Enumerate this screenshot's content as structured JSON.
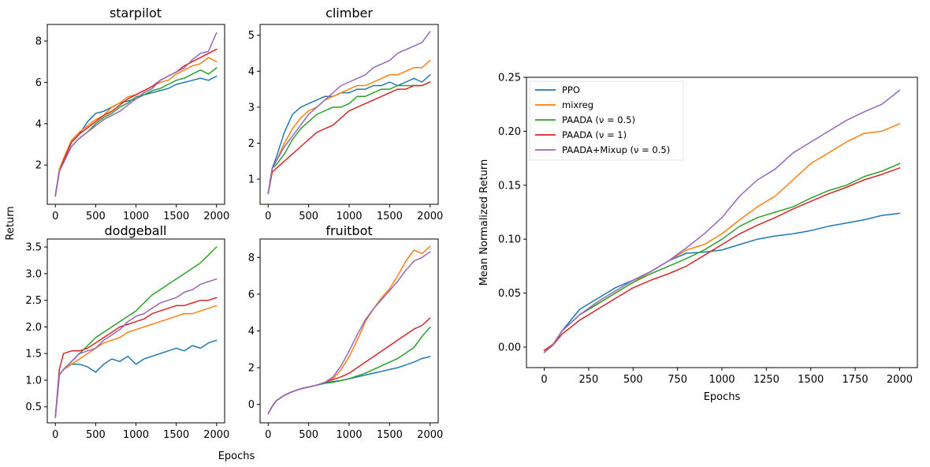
{
  "figure": {
    "shared_xlabel": "Epochs",
    "shared_ylabel": "Return"
  },
  "series_meta": [
    {
      "key": "ppo",
      "name": "PPO",
      "color": "#1f77b4"
    },
    {
      "key": "mixreg",
      "name": "mixreg",
      "color": "#ff7f0e"
    },
    {
      "key": "paada05",
      "name": "PAADA (ν = 0.5)",
      "color": "#2ca02c"
    },
    {
      "key": "paada1",
      "name": "PAADA (ν = 1)",
      "color": "#d62728"
    },
    {
      "key": "paadamix",
      "name": "PAADA+Mixup (ν = 0.5)",
      "color": "#9467bd"
    }
  ],
  "chart_data": [
    {
      "type": "line",
      "title": "starpilot",
      "xlabel": "",
      "ylabel": "",
      "xlim": [
        -100,
        2100
      ],
      "ylim": [
        0.1,
        8.8
      ],
      "xticks": [
        0,
        500,
        1000,
        1500,
        2000
      ],
      "yticks": [
        2,
        4,
        6,
        8
      ],
      "x": [
        0,
        50,
        100,
        200,
        300,
        400,
        500,
        600,
        700,
        800,
        900,
        1000,
        1100,
        1200,
        1300,
        1400,
        1500,
        1600,
        1700,
        1800,
        1900,
        2000
      ],
      "series": [
        {
          "name": "PPO",
          "values": [
            0.5,
            1.7,
            2.2,
            3.1,
            3.5,
            4.1,
            4.5,
            4.6,
            4.8,
            5.0,
            5.1,
            5.2,
            5.4,
            5.5,
            5.6,
            5.7,
            5.9,
            6.0,
            6.1,
            6.2,
            6.1,
            6.3
          ]
        },
        {
          "name": "mixreg",
          "values": [
            0.5,
            1.8,
            2.3,
            3.2,
            3.6,
            3.9,
            4.2,
            4.4,
            4.8,
            5.0,
            5.3,
            5.4,
            5.6,
            5.8,
            6.0,
            6.1,
            6.4,
            6.6,
            6.8,
            6.9,
            7.2,
            7.0
          ]
        },
        {
          "name": "PAADA (ν = 0.5)",
          "values": [
            0.5,
            1.7,
            2.1,
            2.9,
            3.3,
            3.6,
            4.0,
            4.3,
            4.5,
            4.8,
            5.0,
            5.3,
            5.4,
            5.6,
            5.7,
            5.9,
            6.1,
            6.2,
            6.4,
            6.6,
            6.4,
            6.7
          ]
        },
        {
          "name": "PAADA (ν = 1)",
          "values": [
            0.5,
            1.7,
            2.2,
            3.1,
            3.5,
            3.8,
            4.1,
            4.4,
            4.6,
            4.9,
            5.2,
            5.4,
            5.6,
            5.8,
            6.1,
            6.3,
            6.5,
            6.8,
            7.0,
            7.2,
            7.4,
            7.6
          ]
        },
        {
          "name": "PAADA+Mixup (ν = 0.5)",
          "values": [
            0.5,
            1.7,
            2.1,
            2.9,
            3.3,
            3.6,
            3.9,
            4.2,
            4.4,
            4.6,
            4.9,
            5.2,
            5.5,
            5.7,
            6.1,
            6.3,
            6.5,
            6.7,
            7.1,
            7.4,
            7.5,
            8.4
          ]
        }
      ]
    },
    {
      "type": "line",
      "title": "climber",
      "xlabel": "",
      "ylabel": "",
      "xlim": [
        -100,
        2100
      ],
      "ylim": [
        0.3,
        5.3
      ],
      "xticks": [
        0,
        500,
        1000,
        1500,
        2000
      ],
      "yticks": [
        1,
        2,
        3,
        4,
        5
      ],
      "x": [
        0,
        50,
        100,
        200,
        300,
        400,
        500,
        600,
        700,
        800,
        900,
        1000,
        1100,
        1200,
        1300,
        1400,
        1500,
        1600,
        1700,
        1800,
        1900,
        2000
      ],
      "series": [
        {
          "name": "PPO",
          "values": [
            0.6,
            1.3,
            1.6,
            2.3,
            2.8,
            3.0,
            3.1,
            3.2,
            3.3,
            3.3,
            3.4,
            3.4,
            3.5,
            3.5,
            3.6,
            3.6,
            3.7,
            3.6,
            3.7,
            3.8,
            3.7,
            3.9
          ]
        },
        {
          "name": "mixreg",
          "values": [
            0.6,
            1.3,
            1.5,
            2.0,
            2.4,
            2.7,
            2.9,
            3.0,
            3.2,
            3.3,
            3.4,
            3.5,
            3.6,
            3.6,
            3.7,
            3.8,
            3.9,
            3.9,
            4.0,
            4.1,
            4.1,
            4.3
          ]
        },
        {
          "name": "PAADA (ν = 0.5)",
          "values": [
            0.6,
            1.3,
            1.4,
            1.7,
            2.1,
            2.4,
            2.6,
            2.8,
            2.9,
            3.0,
            3.0,
            3.1,
            3.3,
            3.3,
            3.4,
            3.5,
            3.5,
            3.6,
            3.6,
            3.6,
            3.6,
            3.7
          ]
        },
        {
          "name": "PAADA (ν = 1)",
          "values": [
            0.6,
            1.2,
            1.3,
            1.5,
            1.7,
            1.9,
            2.1,
            2.3,
            2.4,
            2.5,
            2.7,
            2.9,
            3.0,
            3.1,
            3.2,
            3.3,
            3.4,
            3.5,
            3.5,
            3.6,
            3.6,
            3.7
          ]
        },
        {
          "name": "PAADA+Mixup (ν = 0.5)",
          "values": [
            0.6,
            1.3,
            1.5,
            1.9,
            2.2,
            2.5,
            2.8,
            3.0,
            3.2,
            3.4,
            3.6,
            3.7,
            3.8,
            3.9,
            4.1,
            4.2,
            4.3,
            4.5,
            4.6,
            4.7,
            4.8,
            5.1
          ]
        }
      ]
    },
    {
      "type": "line",
      "title": "dodgeball",
      "xlabel": "",
      "ylabel": "",
      "xlim": [
        -100,
        2100
      ],
      "ylim": [
        0.2,
        3.65
      ],
      "xticks": [
        0,
        500,
        1000,
        1500,
        2000
      ],
      "yticks": [
        0.5,
        1.0,
        1.5,
        2.0,
        2.5,
        3.0,
        3.5
      ],
      "x": [
        0,
        50,
        100,
        200,
        300,
        400,
        500,
        600,
        700,
        800,
        900,
        1000,
        1100,
        1200,
        1300,
        1400,
        1500,
        1600,
        1700,
        1800,
        1900,
        2000
      ],
      "series": [
        {
          "name": "PPO",
          "values": [
            0.3,
            1.1,
            1.2,
            1.3,
            1.3,
            1.25,
            1.15,
            1.3,
            1.4,
            1.35,
            1.45,
            1.3,
            1.4,
            1.45,
            1.5,
            1.55,
            1.6,
            1.55,
            1.65,
            1.6,
            1.7,
            1.75
          ]
        },
        {
          "name": "mixreg",
          "values": [
            0.3,
            1.1,
            1.2,
            1.3,
            1.4,
            1.5,
            1.6,
            1.7,
            1.75,
            1.8,
            1.9,
            1.95,
            2.0,
            2.05,
            2.1,
            2.15,
            2.2,
            2.25,
            2.25,
            2.3,
            2.35,
            2.4
          ]
        },
        {
          "name": "PAADA (ν = 0.5)",
          "values": [
            0.3,
            1.1,
            1.2,
            1.35,
            1.5,
            1.65,
            1.8,
            1.9,
            2.0,
            2.1,
            2.2,
            2.3,
            2.45,
            2.6,
            2.7,
            2.8,
            2.9,
            3.0,
            3.1,
            3.2,
            3.35,
            3.5
          ]
        },
        {
          "name": "PAADA (ν = 1)",
          "values": [
            0.3,
            1.2,
            1.5,
            1.55,
            1.55,
            1.6,
            1.7,
            1.8,
            1.9,
            2.0,
            2.05,
            2.1,
            2.15,
            2.25,
            2.3,
            2.35,
            2.4,
            2.4,
            2.45,
            2.5,
            2.5,
            2.55
          ]
        },
        {
          "name": "PAADA+Mixup (ν = 0.5)",
          "values": [
            0.3,
            1.1,
            1.2,
            1.35,
            1.5,
            1.55,
            1.6,
            1.75,
            1.85,
            1.95,
            2.1,
            2.2,
            2.25,
            2.35,
            2.45,
            2.5,
            2.55,
            2.65,
            2.7,
            2.8,
            2.85,
            2.9
          ]
        }
      ]
    },
    {
      "type": "line",
      "title": "fruitbot",
      "xlabel": "",
      "ylabel": "",
      "xlim": [
        -100,
        2100
      ],
      "ylim": [
        -1.0,
        9.0
      ],
      "xticks": [
        0,
        500,
        1000,
        1500,
        2000
      ],
      "yticks": [
        0,
        2,
        4,
        6,
        8
      ],
      "x": [
        0,
        50,
        100,
        200,
        300,
        400,
        500,
        600,
        700,
        800,
        900,
        1000,
        1100,
        1200,
        1300,
        1400,
        1500,
        1600,
        1700,
        1800,
        1900,
        2000
      ],
      "series": [
        {
          "name": "PPO",
          "values": [
            -0.5,
            -0.1,
            0.2,
            0.5,
            0.7,
            0.85,
            0.95,
            1.05,
            1.15,
            1.25,
            1.3,
            1.4,
            1.5,
            1.6,
            1.7,
            1.8,
            1.9,
            2.0,
            2.15,
            2.3,
            2.5,
            2.6
          ]
        },
        {
          "name": "mixreg",
          "values": [
            -0.5,
            -0.1,
            0.2,
            0.5,
            0.7,
            0.85,
            0.95,
            1.05,
            1.2,
            1.4,
            1.9,
            2.6,
            3.5,
            4.5,
            5.2,
            5.8,
            6.3,
            7.0,
            7.8,
            8.4,
            8.2,
            8.6
          ]
        },
        {
          "name": "PAADA (ν = 0.5)",
          "values": [
            -0.5,
            -0.1,
            0.2,
            0.5,
            0.7,
            0.85,
            0.95,
            1.05,
            1.15,
            1.2,
            1.3,
            1.4,
            1.55,
            1.7,
            1.9,
            2.1,
            2.3,
            2.5,
            2.8,
            3.1,
            3.7,
            4.2
          ]
        },
        {
          "name": "PAADA (ν = 1)",
          "values": [
            -0.5,
            -0.1,
            0.2,
            0.5,
            0.7,
            0.85,
            0.95,
            1.05,
            1.2,
            1.35,
            1.5,
            1.7,
            2.0,
            2.3,
            2.6,
            2.9,
            3.2,
            3.5,
            3.8,
            4.1,
            4.3,
            4.7
          ]
        },
        {
          "name": "PAADA+Mixup (ν = 0.5)",
          "values": [
            -0.5,
            -0.1,
            0.2,
            0.5,
            0.7,
            0.85,
            0.95,
            1.05,
            1.2,
            1.5,
            2.1,
            2.9,
            3.8,
            4.6,
            5.2,
            5.7,
            6.2,
            6.7,
            7.3,
            7.8,
            8.0,
            8.3
          ]
        }
      ]
    },
    {
      "type": "line",
      "title": "",
      "xlabel": "Epochs",
      "ylabel": "Mean Normalized Return",
      "xlim": [
        -100,
        2100
      ],
      "ylim": [
        -0.019,
        0.25
      ],
      "xticks": [
        0,
        250,
        500,
        750,
        1000,
        1250,
        1500,
        1750,
        2000
      ],
      "yticks": [
        0.0,
        0.05,
        0.1,
        0.15,
        0.2,
        0.25
      ],
      "ytick_labels": [
        "0.00",
        "0.05",
        "0.10",
        "0.15",
        "0.20",
        "0.25"
      ],
      "legend_position": "top-left",
      "x": [
        0,
        50,
        100,
        200,
        300,
        400,
        500,
        600,
        700,
        800,
        900,
        1000,
        1100,
        1200,
        1300,
        1400,
        1500,
        1600,
        1700,
        1800,
        1900,
        2000
      ],
      "series": [
        {
          "name": "PPO",
          "values": [
            -0.005,
            0.002,
            0.015,
            0.035,
            0.045,
            0.055,
            0.062,
            0.07,
            0.08,
            0.087,
            0.088,
            0.09,
            0.095,
            0.1,
            0.103,
            0.105,
            0.108,
            0.112,
            0.115,
            0.118,
            0.122,
            0.124
          ]
        },
        {
          "name": "mixreg",
          "values": [
            -0.003,
            0.003,
            0.015,
            0.03,
            0.04,
            0.05,
            0.06,
            0.07,
            0.08,
            0.09,
            0.095,
            0.105,
            0.118,
            0.13,
            0.14,
            0.155,
            0.17,
            0.18,
            0.19,
            0.198,
            0.2,
            0.207
          ]
        },
        {
          "name": "PAADA (ν = 0.5)",
          "values": [
            -0.003,
            0.002,
            0.015,
            0.03,
            0.04,
            0.05,
            0.06,
            0.068,
            0.075,
            0.082,
            0.09,
            0.1,
            0.112,
            0.12,
            0.125,
            0.13,
            0.138,
            0.145,
            0.15,
            0.158,
            0.163,
            0.17
          ]
        },
        {
          "name": "PAADA (ν = 1)",
          "values": [
            -0.003,
            0.002,
            0.012,
            0.025,
            0.035,
            0.045,
            0.055,
            0.062,
            0.068,
            0.075,
            0.085,
            0.095,
            0.105,
            0.113,
            0.12,
            0.128,
            0.135,
            0.142,
            0.148,
            0.155,
            0.16,
            0.166
          ]
        },
        {
          "name": "PAADA+Mixup (ν = 0.5)",
          "values": [
            -0.005,
            0.002,
            0.015,
            0.03,
            0.042,
            0.052,
            0.062,
            0.07,
            0.08,
            0.092,
            0.105,
            0.12,
            0.14,
            0.155,
            0.165,
            0.18,
            0.19,
            0.2,
            0.21,
            0.218,
            0.225,
            0.238
          ]
        }
      ]
    }
  ]
}
